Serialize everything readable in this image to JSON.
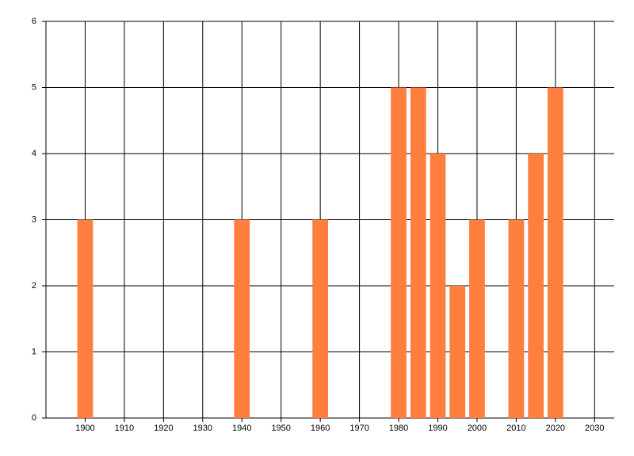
{
  "chart_data": {
    "type": "bar",
    "x": [
      1900,
      1940,
      1960,
      1980,
      1985,
      1990,
      1995,
      2000,
      2010,
      2015,
      2020
    ],
    "values": [
      3,
      3,
      3,
      5,
      5,
      4,
      2,
      3,
      3,
      4,
      5
    ],
    "color": "#ff7f3f",
    "xlim": [
      1890,
      2035
    ],
    "xticks": [
      1900,
      1910,
      1920,
      1930,
      1940,
      1950,
      1960,
      1970,
      1980,
      1990,
      2000,
      2010,
      2020,
      2030
    ],
    "ylim": [
      0,
      6
    ],
    "yticks": [
      0,
      1,
      2,
      3,
      4,
      5,
      6
    ],
    "grid": true
  }
}
